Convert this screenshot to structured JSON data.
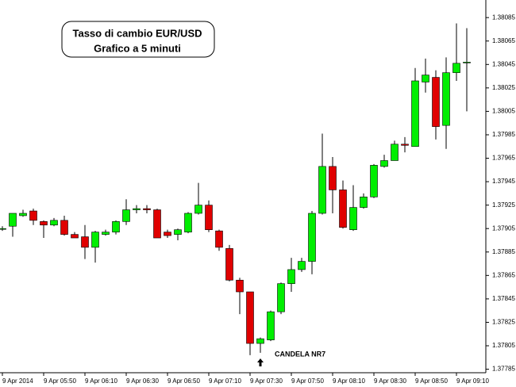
{
  "chart_data": {
    "type": "candlestick",
    "title": "Tasso di cambio EUR/USD",
    "subtitle": "Grafico a 5 minuti",
    "annotation": "CANDELA NR7",
    "annotation_index": 25,
    "up_color": "#00ee00",
    "down_color": "#e00000",
    "categories": [
      "9 Apr 2014",
      null,
      null,
      null,
      "9 Apr 05:50",
      null,
      null,
      null,
      "9 Apr 06:10",
      null,
      null,
      null,
      "9 Apr 06:30",
      null,
      null,
      null,
      "9 Apr 06:50",
      null,
      null,
      null,
      "9 Apr 07:10",
      null,
      null,
      null,
      "9 Apr 07:30",
      null,
      null,
      null,
      "9 Apr 07:50",
      null,
      null,
      null,
      "9 Apr 08:10",
      null,
      null,
      null,
      "9 Apr 08:30",
      null,
      null,
      null,
      "9 Apr 08:50",
      null,
      null,
      null,
      "9 Apr 09:10",
      null
    ],
    "open": [
      1.37905,
      1.37907,
      1.37916,
      1.3792,
      1.37911,
      1.37908,
      1.37912,
      1.379,
      1.37898,
      1.37889,
      1.379,
      1.37902,
      1.37911,
      1.37921,
      1.37922,
      1.37921,
      1.37902,
      1.379,
      1.37902,
      1.37918,
      1.37925,
      1.37903,
      1.37888,
      1.37861,
      1.37851,
      1.37807,
      1.3781,
      1.37834,
      1.37858,
      1.3787,
      1.37877,
      1.37918,
      1.37958,
      1.37938,
      1.37904,
      1.37923,
      1.37932,
      1.37958,
      1.37963,
      1.37977,
      1.37975,
      1.3803,
      1.38034,
      1.37993,
      1.38038,
      1.38047
    ],
    "high": [
      1.37907,
      1.37918,
      1.37921,
      1.37922,
      1.37912,
      1.37914,
      1.37916,
      1.37902,
      1.37908,
      1.37903,
      1.37904,
      1.37912,
      1.3793,
      1.37925,
      1.37925,
      1.37922,
      1.37904,
      1.37905,
      1.37919,
      1.37944,
      1.37929,
      1.37904,
      1.37891,
      1.37863,
      1.37851,
      1.37812,
      1.37835,
      1.37859,
      1.3788,
      1.3788,
      1.3792,
      1.37986,
      1.37966,
      1.37946,
      1.37942,
      1.37935,
      1.3796,
      1.37968,
      1.3798,
      1.37983,
      1.38042,
      1.3805,
      1.3804,
      1.38051,
      1.3808,
      1.38076
    ],
    "low": [
      1.37903,
      1.37898,
      1.37915,
      1.37908,
      1.37897,
      1.37907,
      1.37899,
      1.37897,
      1.37879,
      1.37876,
      1.37899,
      1.379,
      1.37908,
      1.37918,
      1.37918,
      1.37897,
      1.37897,
      1.37895,
      1.37901,
      1.37917,
      1.37902,
      1.37886,
      1.3786,
      1.37832,
      1.37797,
      1.37799,
      1.37809,
      1.37832,
      1.37851,
      1.37868,
      1.37866,
      1.37917,
      1.37918,
      1.37905,
      1.37903,
      1.37922,
      1.37931,
      1.37957,
      1.37963,
      1.3797,
      1.37975,
      1.38021,
      1.37981,
      1.37973,
      1.38031,
      1.38005
    ],
    "close": [
      1.37905,
      1.37918,
      1.37918,
      1.37912,
      1.37908,
      1.37912,
      1.379,
      1.37897,
      1.37889,
      1.37902,
      1.37902,
      1.37911,
      1.37921,
      1.37922,
      1.37921,
      1.37897,
      1.37899,
      1.37904,
      1.37918,
      1.37925,
      1.37904,
      1.37889,
      1.37861,
      1.37851,
      1.37807,
      1.37811,
      1.37834,
      1.37858,
      1.3787,
      1.37877,
      1.37918,
      1.37958,
      1.37938,
      1.37906,
      1.37923,
      1.37932,
      1.37959,
      1.37963,
      1.37977,
      1.37976,
      1.38031,
      1.38036,
      1.37992,
      1.38038,
      1.38046,
      1.38047
    ],
    "ylim": [
      1.37782,
      1.381
    ],
    "yticks": [
      1.37785,
      1.37805,
      1.37825,
      1.37845,
      1.37865,
      1.37885,
      1.37905,
      1.37925,
      1.37945,
      1.37965,
      1.37985,
      1.38005,
      1.38025,
      1.38045,
      1.38065,
      1.38085
    ]
  }
}
